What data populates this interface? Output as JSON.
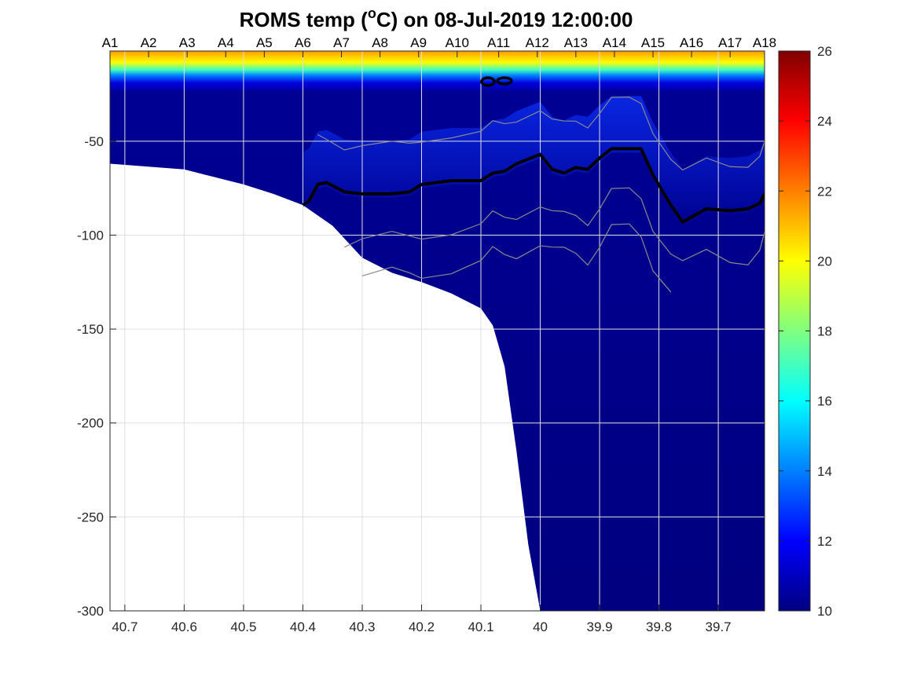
{
  "chart_data": {
    "type": "heatmap",
    "title_main": "ROMS temp (",
    "title_sup": "o",
    "title_rest": "C) on 08-Jul-2019 12:00:00",
    "x_ticks": [
      "40.7",
      "40.6",
      "40.5",
      "40.4",
      "40.3",
      "40.2",
      "40.1",
      "40",
      "39.9",
      "39.8",
      "39.7"
    ],
    "x_tick_values": [
      40.7,
      40.6,
      40.5,
      40.4,
      40.3,
      40.2,
      40.1,
      40.0,
      39.9,
      39.8,
      39.7
    ],
    "xlim": [
      40.725,
      39.622
    ],
    "y_ticks": [
      "-50",
      "-100",
      "-150",
      "-200",
      "-250",
      "-300"
    ],
    "y_tick_values": [
      -50,
      -100,
      -150,
      -200,
      -250,
      -300
    ],
    "ylim": [
      -300,
      -2
    ],
    "station_labels": [
      "A1",
      "A2",
      "A3",
      "A4",
      "A5",
      "A6",
      "A7",
      "A8",
      "A9",
      "A10",
      "A11",
      "A12",
      "A13",
      "A14",
      "A15",
      "A16",
      "A17",
      "A18"
    ],
    "station_positions": [
      40.725,
      40.66,
      40.595,
      40.53,
      40.465,
      40.4,
      40.335,
      40.27,
      40.205,
      40.14,
      40.07,
      40.005,
      39.94,
      39.875,
      39.81,
      39.745,
      39.68,
      39.622
    ],
    "colorbar": {
      "ticks": [
        "10",
        "12",
        "14",
        "16",
        "18",
        "20",
        "22",
        "24",
        "26"
      ],
      "tick_values": [
        10,
        12,
        14,
        16,
        18,
        20,
        22,
        24,
        26
      ],
      "range": [
        10,
        26
      ],
      "colormap": "jet"
    },
    "grid": true,
    "surface_temperature": {
      "x": [
        40.725,
        40.6,
        40.4,
        40.2,
        40.0,
        39.85,
        39.75,
        39.622
      ],
      "values": [
        20.5,
        20.8,
        21.0,
        21.2,
        21.6,
        22.3,
        22.5,
        22.4
      ]
    },
    "thermocline_depth": {
      "x": [
        40.725,
        40.6,
        40.4,
        40.3,
        40.2,
        40.1,
        40.0,
        39.9,
        39.8,
        39.7,
        39.622
      ],
      "values": [
        -14,
        -15,
        -16,
        -17,
        -18,
        -19,
        -20,
        -22,
        -24,
        -25,
        -25
      ]
    },
    "bathymetry": {
      "x": [
        40.725,
        40.6,
        40.5,
        40.45,
        40.4,
        40.35,
        40.3,
        40.25,
        40.2,
        40.15,
        40.1,
        40.08,
        40.06,
        40.04,
        40.02,
        40.0
      ],
      "depth": [
        -62,
        -65,
        -73,
        -78,
        -84,
        -95,
        -112,
        -120,
        -125,
        -131,
        -139,
        -148,
        -170,
        -215,
        -265,
        -300
      ]
    },
    "thick_contour": {
      "x": [
        40.4,
        40.39,
        40.375,
        40.36,
        40.33,
        40.3,
        40.25,
        40.22,
        40.2,
        40.15,
        40.1,
        40.08,
        40.06,
        40.04,
        40.0,
        39.98,
        39.96,
        39.94,
        39.92,
        39.9,
        39.88,
        39.85,
        39.83,
        39.81,
        39.78,
        39.76,
        39.72,
        39.68,
        39.65,
        39.63,
        39.622
      ],
      "values": [
        -84,
        -82,
        -73,
        -72,
        -77,
        -78,
        -78,
        -77,
        -73,
        -71,
        -71,
        -67,
        -66,
        -62,
        -57,
        -65,
        -67,
        -64,
        -65,
        -59,
        -54,
        -54,
        -54,
        -68,
        -84,
        -93,
        -86,
        -87,
        -86,
        -83,
        -78
      ]
    }
  }
}
